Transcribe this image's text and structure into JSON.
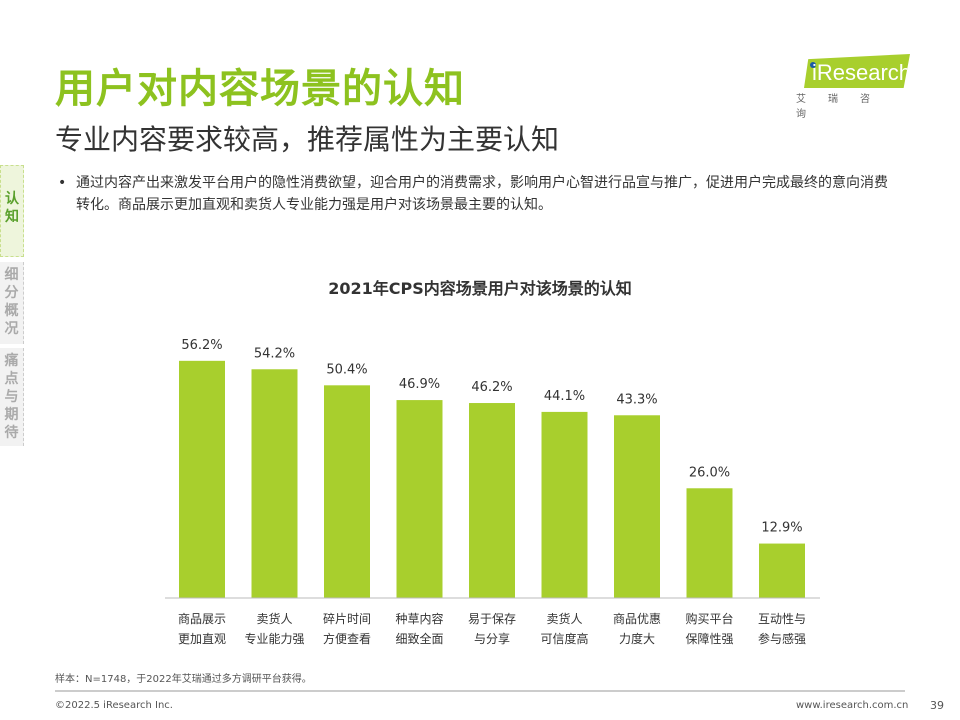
{
  "header": {
    "title": "用户对内容场景的认知",
    "subtitle": "专业内容要求较高，推荐属性为主要认知"
  },
  "logo": {
    "brand": "iResearch",
    "cn": "艾瑞咨询"
  },
  "side_nav": [
    {
      "label": "认知",
      "active": true
    },
    {
      "label": "细分概况",
      "active": false
    },
    {
      "label": "痛点与期待",
      "active": false
    }
  ],
  "bullet": "通过内容产出来激发平台用户的隐性消费欲望，迎合用户的消费需求，影响用户心智进行品宣与推广，促进用户完成最终的意向消费转化。商品展示更加直观和卖货人专业能力强是用户对该场景最主要的认知。",
  "chart_data": {
    "type": "bar",
    "title": "2021年CPS内容场景用户对该场景的认知",
    "categories": [
      [
        "商品展示",
        "更加直观"
      ],
      [
        "卖货人",
        "专业能力强"
      ],
      [
        "碎片时间",
        "方便查看"
      ],
      [
        "种草内容",
        "细致全面"
      ],
      [
        "易于保存",
        "与分享"
      ],
      [
        "卖货人",
        "可信度高"
      ],
      [
        "商品优惠",
        "力度大"
      ],
      [
        "购买平台",
        "保障性强"
      ],
      [
        "互动性与",
        "参与感强"
      ]
    ],
    "values": [
      56.2,
      54.2,
      50.4,
      46.9,
      46.2,
      44.1,
      43.3,
      26.0,
      12.9
    ],
    "value_labels": [
      "56.2%",
      "54.2%",
      "50.4%",
      "46.9%",
      "46.2%",
      "44.1%",
      "43.3%",
      "26.0%",
      "12.9%"
    ],
    "unit": "%",
    "ylim": [
      0,
      60
    ],
    "grid": false,
    "bar_color": "#a8cf2d"
  },
  "footer": {
    "note": "样本：N=1748，于2022年艾瑞通过多方调研平台获得。",
    "copyright": "©2022.5 iResearch Inc.",
    "url": "www.iresearch.com.cn",
    "page": "39"
  },
  "colors": {
    "accent": "#8dc21f"
  }
}
